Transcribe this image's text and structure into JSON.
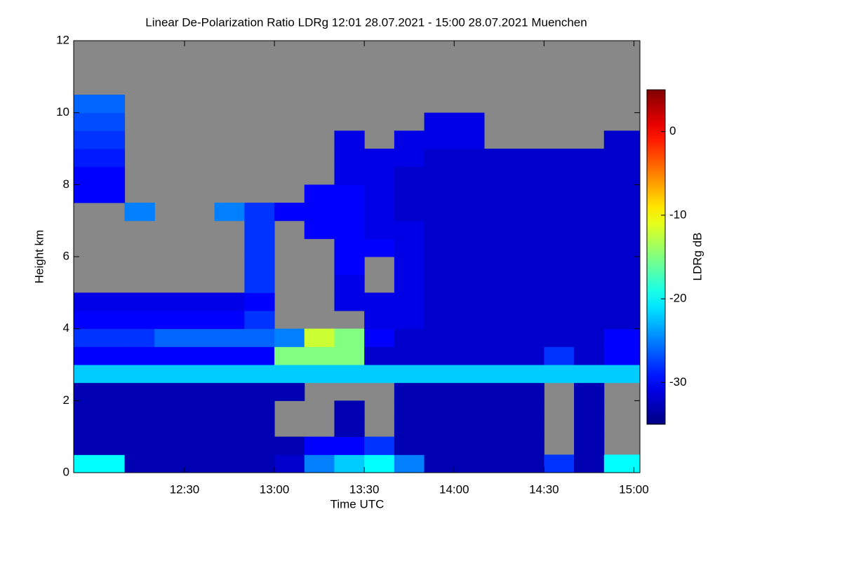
{
  "chart_data": {
    "type": "heatmap",
    "title": "Linear De-Polarization Ratio LDRg   12:01 28.07.2021 - 15:00 28.07.2021 Muenchen",
    "x_label": "Time UTC",
    "y_label": "Height km",
    "colorbar_label": "LDRg dB",
    "colormap": "jet",
    "missing_color": "#888888",
    "xlim": [
      "11:53",
      "15:02"
    ],
    "xticks": [
      "12:30",
      "13:00",
      "13:30",
      "14:00",
      "14:30",
      "15:00"
    ],
    "ylim": [
      0,
      12
    ],
    "yticks": [
      0,
      2,
      4,
      6,
      8,
      10,
      12
    ],
    "zlim": [
      -35,
      5
    ],
    "zticks": [
      0,
      -10,
      -20,
      -30
    ],
    "x_bins": [
      "11:53",
      "12:10",
      "12:20",
      "12:30",
      "12:40",
      "12:50",
      "13:00",
      "13:10",
      "13:20",
      "13:30",
      "13:40",
      "13:50",
      "14:00",
      "14:10",
      "14:20",
      "14:30",
      "14:40",
      "14:50",
      "15:02"
    ],
    "y_bins": [
      0,
      0.5,
      1,
      1.5,
      2,
      2.5,
      3,
      3.5,
      4,
      4.5,
      5,
      5.5,
      6,
      6.5,
      7,
      7.5,
      8,
      8.5,
      9,
      9.5,
      10,
      10.5,
      11,
      11.5,
      12
    ],
    "z": [
      [
        -20,
        -33,
        -33,
        -33,
        -33,
        -33,
        -32,
        -25,
        -22,
        -20,
        -25,
        -33,
        -33,
        -33,
        -33,
        -28,
        -33,
        -20
      ],
      [
        -33,
        -33,
        -33,
        -33,
        -33,
        -33,
        -33,
        -30,
        -30,
        -28,
        -33,
        -33,
        -33,
        -33,
        -33,
        null,
        -33,
        null
      ],
      [
        -33,
        -33,
        -33,
        -33,
        -33,
        -33,
        null,
        null,
        -33,
        null,
        -33,
        -33,
        -33,
        -33,
        -33,
        null,
        -33,
        null
      ],
      [
        -33,
        -33,
        -33,
        -33,
        -33,
        -33,
        null,
        null,
        -33,
        null,
        -33,
        -33,
        -33,
        -33,
        -33,
        null,
        -33,
        null
      ],
      [
        -33,
        -33,
        -33,
        -33,
        -33,
        -33,
        -33,
        null,
        null,
        null,
        -33,
        -33,
        -33,
        -33,
        -33,
        null,
        -33,
        null
      ],
      [
        -22,
        -22,
        -22,
        -22,
        -22,
        -22,
        -22,
        -22,
        -22,
        -22,
        -22,
        -22,
        -22,
        -22,
        -22,
        -22,
        -22,
        -22
      ],
      [
        -30,
        -30,
        -30,
        -30,
        -30,
        -30,
        -15,
        -15,
        -15,
        -32,
        -32,
        -32,
        -32,
        -32,
        -32,
        -28,
        -32,
        -30
      ],
      [
        -28,
        -28,
        -26,
        -26,
        -26,
        -26,
        -25,
        -12,
        -15,
        -30,
        -32,
        -32,
        -32,
        -32,
        -32,
        -32,
        -32,
        -30
      ],
      [
        -30,
        -30,
        -30,
        -30,
        -30,
        -28,
        null,
        null,
        null,
        -31,
        -31,
        -32,
        -32,
        -32,
        -32,
        -32,
        -32,
        -32
      ],
      [
        -31,
        -31,
        -31,
        -31,
        -31,
        -30,
        null,
        null,
        -31,
        -31,
        -31,
        -32,
        -32,
        -32,
        -32,
        -32,
        -32,
        -32
      ],
      [
        null,
        null,
        null,
        null,
        null,
        -28,
        null,
        null,
        -31,
        null,
        -31,
        -32,
        -32,
        -32,
        -32,
        -32,
        -32,
        -32
      ],
      [
        null,
        null,
        null,
        null,
        null,
        -28,
        null,
        null,
        -30,
        null,
        -31,
        -32,
        -32,
        -32,
        -32,
        -32,
        -32,
        -32
      ],
      [
        null,
        null,
        null,
        null,
        null,
        -28,
        null,
        null,
        -30,
        -30,
        -31,
        -32,
        -32,
        -32,
        -32,
        -32,
        -32,
        -32
      ],
      [
        null,
        null,
        null,
        null,
        null,
        -28,
        null,
        -30,
        -30,
        -31,
        -31,
        -32,
        -32,
        -32,
        -32,
        -32,
        -32,
        -32
      ],
      [
        null,
        -25,
        null,
        null,
        -25,
        -28,
        -30,
        -30,
        -30,
        -31,
        -32,
        -32,
        -32,
        -32,
        -32,
        -32,
        -32,
        -32
      ],
      [
        -30,
        null,
        null,
        null,
        null,
        null,
        null,
        -30,
        -30,
        -31,
        -32,
        -32,
        -32,
        -32,
        -32,
        -32,
        -32,
        -32
      ],
      [
        -30,
        null,
        null,
        null,
        null,
        null,
        null,
        null,
        -31,
        -31,
        -32,
        -32,
        -32,
        -32,
        -32,
        -32,
        -32,
        -32
      ],
      [
        -29,
        null,
        null,
        null,
        null,
        null,
        null,
        null,
        -31,
        -31,
        -31,
        -32,
        -32,
        -32,
        -32,
        -32,
        -32,
        -32
      ],
      [
        -28,
        null,
        null,
        null,
        null,
        null,
        null,
        null,
        -31,
        null,
        -31,
        -31,
        -31,
        null,
        null,
        null,
        null,
        -32
      ],
      [
        -27,
        null,
        null,
        null,
        null,
        null,
        null,
        null,
        null,
        null,
        null,
        -31,
        -31,
        null,
        null,
        null,
        null,
        null
      ],
      [
        -26,
        null,
        null,
        null,
        null,
        null,
        null,
        null,
        null,
        null,
        null,
        null,
        null,
        null,
        null,
        null,
        null,
        null
      ],
      [
        null,
        null,
        null,
        null,
        null,
        null,
        null,
        null,
        null,
        null,
        null,
        null,
        null,
        null,
        null,
        null,
        null,
        null
      ],
      [
        null,
        null,
        null,
        null,
        null,
        null,
        null,
        null,
        null,
        null,
        null,
        null,
        null,
        null,
        null,
        null,
        null,
        null
      ],
      [
        null,
        null,
        null,
        null,
        null,
        null,
        null,
        null,
        null,
        null,
        null,
        null,
        null,
        null,
        null,
        null,
        null,
        null
      ]
    ]
  }
}
